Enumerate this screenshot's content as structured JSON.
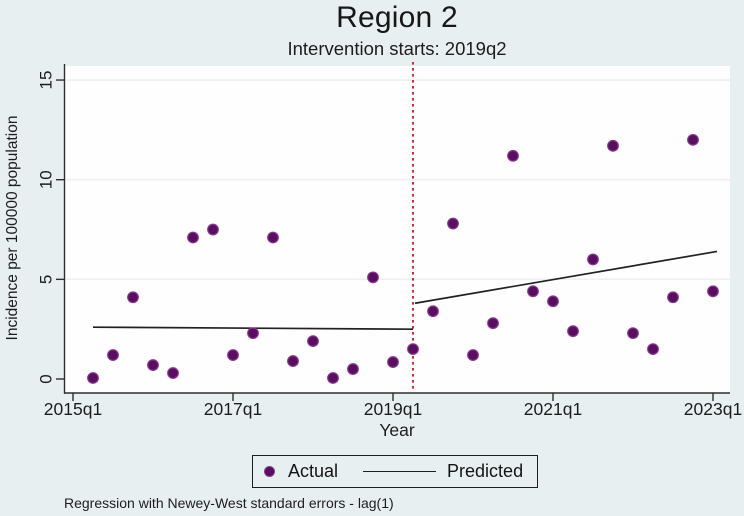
{
  "figure": {
    "note": "Regression with Newey-West standard errors - lag(1)"
  },
  "chart_data": {
    "type": "scatter",
    "title": "Region 2",
    "subtitle": "Intervention starts: 2019q2",
    "xlabel": "Year",
    "ylabel": "Incidence per 100000 population",
    "x_tick_labels": [
      "2015q1",
      "2017q1",
      "2019q1",
      "2021q1",
      "2023q1"
    ],
    "y_tick_labels": [
      "0",
      "5",
      "10",
      "15"
    ],
    "y_ticks": [
      0,
      5,
      10,
      15
    ],
    "ylim": [
      0,
      15
    ],
    "grid": true,
    "legend": [
      "Actual",
      "Predicted"
    ],
    "legend_position": "bottom-center",
    "intervention_quarter": "2019q2",
    "series": [
      {
        "name": "Actual",
        "type": "scatter",
        "quarters": [
          "2015q2",
          "2015q3",
          "2015q4",
          "2016q1",
          "2016q2",
          "2016q3",
          "2016q4",
          "2017q1",
          "2017q2",
          "2017q3",
          "2017q4",
          "2018q1",
          "2018q2",
          "2018q3",
          "2018q4",
          "2019q1",
          "2019q2",
          "2019q3",
          "2019q4",
          "2020q1",
          "2020q2",
          "2020q3",
          "2020q4",
          "2021q1",
          "2021q2",
          "2021q3",
          "2021q4",
          "2022q1",
          "2022q2",
          "2022q3",
          "2022q4",
          "2023q1"
        ],
        "values": [
          0.05,
          1.2,
          4.1,
          0.7,
          0.3,
          7.1,
          7.5,
          1.2,
          2.3,
          7.1,
          0.9,
          1.9,
          0.05,
          0.5,
          5.1,
          0.85,
          1.5,
          3.4,
          7.8,
          1.2,
          2.8,
          11.2,
          4.4,
          3.9,
          2.4,
          6.0,
          11.7,
          2.3,
          1.5,
          4.1,
          12.0,
          4.4
        ]
      },
      {
        "name": "Predicted",
        "type": "line",
        "segments": [
          {
            "from": "2015q2",
            "to": "2019q2",
            "y_from": 2.6,
            "y_to": 2.5
          },
          {
            "from": "2019q2",
            "to": "2023q1",
            "y_from": 3.8,
            "y_to": 6.4
          }
        ]
      }
    ],
    "colors": {
      "actual_fill": "#5a0d61",
      "actual_ring": "#843a8a",
      "predicted_line": "#222222",
      "intervention_line": "#c13535",
      "background": "#e7eff1",
      "plot_background": "#fefefe",
      "gridline": "#f1eff1",
      "axis": "#2e2e2e"
    }
  }
}
